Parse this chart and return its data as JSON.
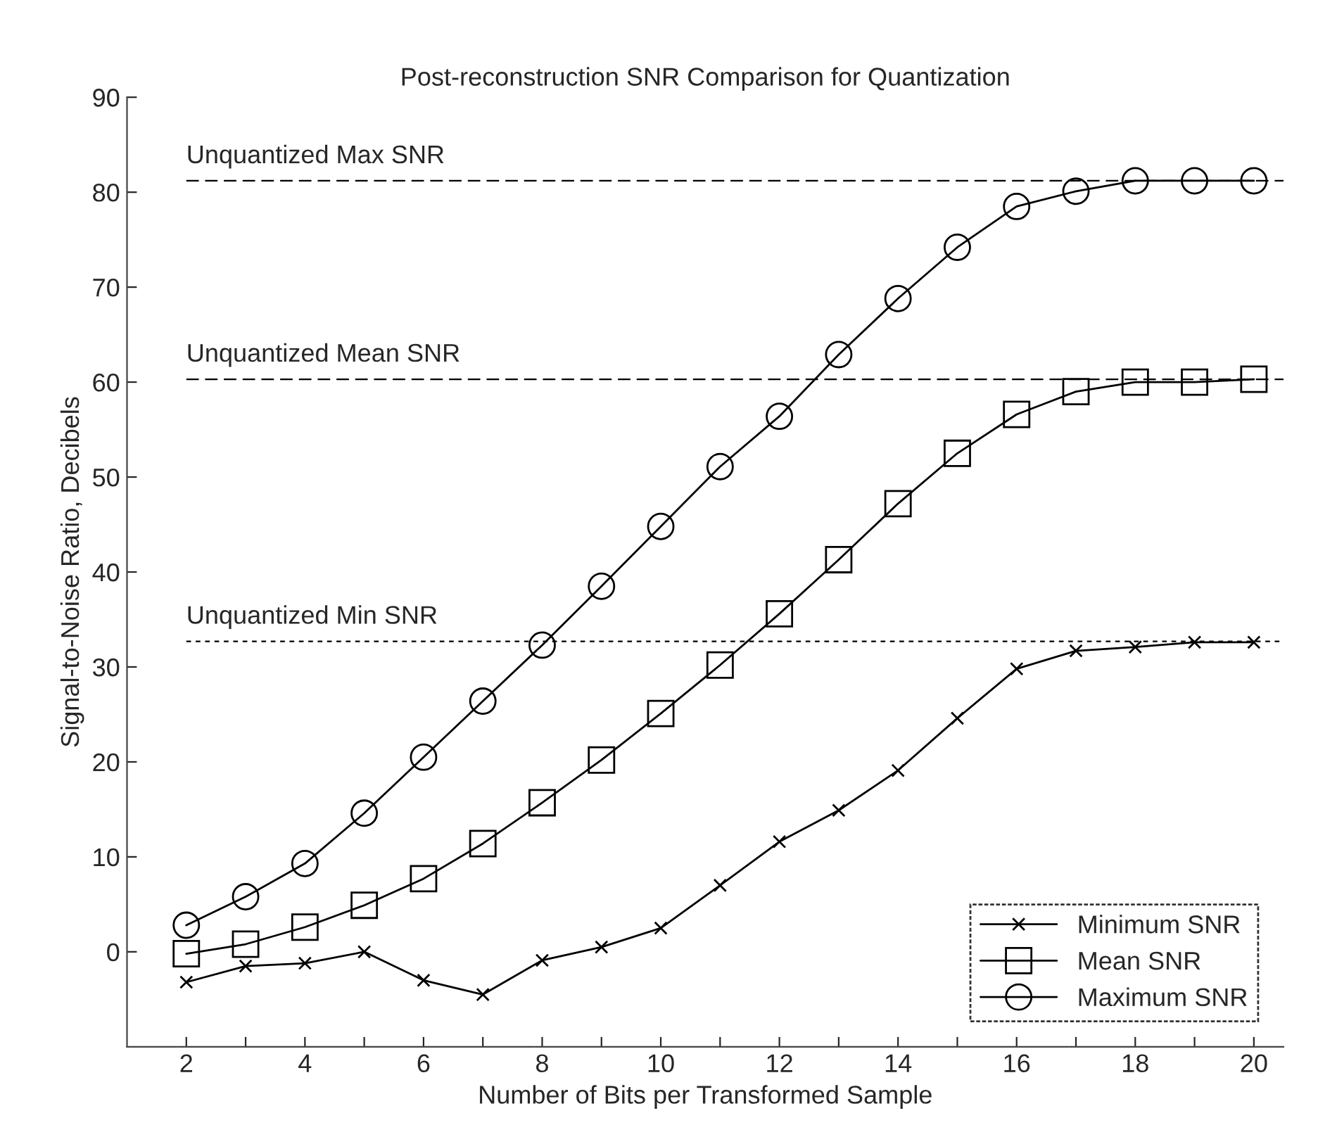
{
  "chart_data": {
    "type": "line",
    "title": "Post-reconstruction SNR Comparison for Quantization",
    "xlabel": "Number of Bits per Transformed Sample",
    "ylabel": "Signal-to-Noise Ratio, Decibels",
    "x": [
      2,
      3,
      4,
      5,
      6,
      7,
      8,
      9,
      10,
      11,
      12,
      13,
      14,
      15,
      16,
      17,
      18,
      19,
      20
    ],
    "series": [
      {
        "name": "Minimum SNR",
        "color": "#000000",
        "marker": "cross",
        "values": [
          -3.2,
          -1.5,
          -1.2,
          0,
          -3.0,
          -4.5,
          -0.9,
          0.5,
          2.5,
          7.0,
          11.6,
          14.9,
          19.1,
          24.6,
          29.8,
          31.7,
          32.1,
          32.6,
          32.6
        ]
      },
      {
        "name": "Mean SNR",
        "color": "#000000",
        "marker": "square",
        "values": [
          -0.2,
          0.8,
          2.6,
          4.9,
          7.7,
          11.4,
          15.7,
          20.2,
          25.1,
          30.2,
          35.6,
          41.3,
          47.2,
          52.5,
          56.6,
          59.0,
          60.0,
          60.0,
          60.3
        ]
      },
      {
        "name": "Maximum SNR",
        "color": "#000000",
        "marker": "circle",
        "values": [
          2.8,
          5.8,
          9.3,
          14.6,
          20.5,
          26.4,
          32.3,
          38.5,
          44.8,
          51.1,
          56.4,
          62.9,
          68.8,
          74.2,
          78.5,
          80.1,
          81.2,
          81.2,
          81.2
        ]
      }
    ],
    "ref_lines": [
      {
        "axis": "y",
        "value": 81.2,
        "label": "Unquantized Max SNR",
        "color": "#000000",
        "line_style": "dashed"
      },
      {
        "axis": "y",
        "value": 60.3,
        "label": "Unquantized Mean SNR",
        "color": "#000000",
        "line_style": "dashed"
      },
      {
        "axis": "y",
        "value": 32.7,
        "label": "Unquantized Min SNR",
        "color": "#000000",
        "line_style": "dotted"
      }
    ],
    "xlim": [
      1,
      20.5
    ],
    "ylim": [
      -10,
      90
    ],
    "xticks": [
      2,
      {
        "value": 3,
        "label": null
      },
      4,
      {
        "value": 5,
        "label": null
      },
      6,
      {
        "value": 7,
        "label": null
      },
      8,
      {
        "value": 9,
        "label": null
      },
      10,
      {
        "value": 11,
        "label": null
      },
      12,
      {
        "value": 13,
        "label": null
      },
      14,
      {
        "value": 15,
        "label": null
      },
      16,
      {
        "value": 17,
        "label": null
      },
      18,
      {
        "value": 19,
        "label": null
      },
      20
    ],
    "yticks": [
      0,
      10,
      20,
      30,
      40,
      50,
      60,
      70,
      80,
      90
    ],
    "grid": false,
    "legend": "bottom right",
    "line_style": "solid"
  }
}
